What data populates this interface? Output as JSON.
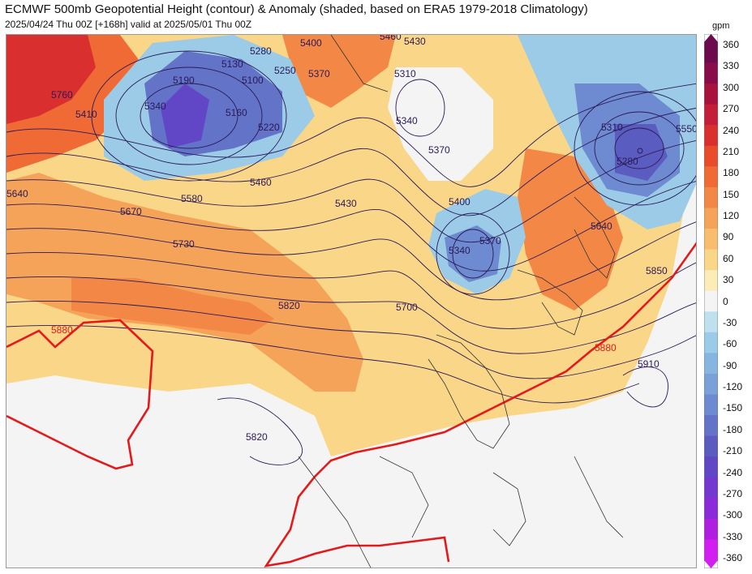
{
  "header": {
    "title": "ECMWF 500mb Geopotential Height (contour) & Anomaly (shaded, based on ERA5 1979-2018 Climatology)",
    "subtitle": "2025/04/24 Thu 00Z [+168h] valid at 2025/05/01 Thu 00Z"
  },
  "colorbar": {
    "unit": "gpm",
    "ticks": [
      "360",
      "330",
      "300",
      "270",
      "240",
      "210",
      "180",
      "150",
      "120",
      "90",
      "60",
      "30",
      "0",
      "-30",
      "-60",
      "-90",
      "-120",
      "-150",
      "-180",
      "-210",
      "-240",
      "-270",
      "-300",
      "-330",
      "-360"
    ],
    "colors": [
      "#6d0a4e",
      "#8a0b4a",
      "#a8123f",
      "#c41e3a",
      "#d9302f",
      "#e84c2a",
      "#ef6a35",
      "#f38846",
      "#f6a35a",
      "#f8bd6f",
      "#fad688",
      "#fbecb8",
      "#f4f4f4",
      "#bfe0ee",
      "#9bcbe6",
      "#86b6df",
      "#7aa2d8",
      "#6e8ad0",
      "#6273c8",
      "#5a5cc0",
      "#6146c6",
      "#7437cf",
      "#8b2ad9",
      "#b01fe0",
      "#d21ef0"
    ]
  },
  "contour_labels": {
    "blue": [
      "5760",
      "5410",
      "5190",
      "5340",
      "5130",
      "5100",
      "5160",
      "5220",
      "5280",
      "5250",
      "5400",
      "5460",
      "5430",
      "5370",
      "5310",
      "5340",
      "5370",
      "5640",
      "5580",
      "5460",
      "5670",
      "5430",
      "5730",
      "5400",
      "5340",
      "5370",
      "5700",
      "5820",
      "5640",
      "5310",
      "5280",
      "5550",
      "5850",
      "5910",
      "5820"
    ],
    "red": [
      "5880",
      "5880"
    ]
  },
  "chart_data": {
    "type": "heatmap",
    "title": "ECMWF 500mb Geopotential Height (contour) & Anomaly (shaded, based on ERA5 1979-2018 Climatology)",
    "subtitle": "2025/04/24 Thu 00Z [+168h] valid at 2025/05/01 Thu 00Z",
    "colorbar_unit": "gpm",
    "colorbar_range": [
      -360,
      360
    ],
    "colorbar_step": 30,
    "contour_interval_gpm": 30,
    "highlight_contour_gpm": 5880,
    "highlight_contour_color": "#e31a1c",
    "labeled_height_contours_gpm": [
      5100,
      5130,
      5160,
      5190,
      5220,
      5250,
      5280,
      5310,
      5340,
      5370,
      5400,
      5410,
      5430,
      5460,
      5550,
      5580,
      5640,
      5670,
      5700,
      5730,
      5760,
      5820,
      5850,
      5880,
      5910
    ],
    "anomaly_centers_gpm": [
      {
        "region": "northwest",
        "sign": "positive",
        "peak": 240
      },
      {
        "region": "north-central low",
        "sign": "negative",
        "peak": -240
      },
      {
        "region": "northeast low",
        "sign": "negative",
        "peak": -240
      },
      {
        "region": "central low",
        "sign": "negative",
        "peak": -180
      },
      {
        "region": "southwest ridge",
        "sign": "positive",
        "peak": 150
      },
      {
        "region": "east ridge",
        "sign": "positive",
        "peak": 150
      }
    ]
  }
}
